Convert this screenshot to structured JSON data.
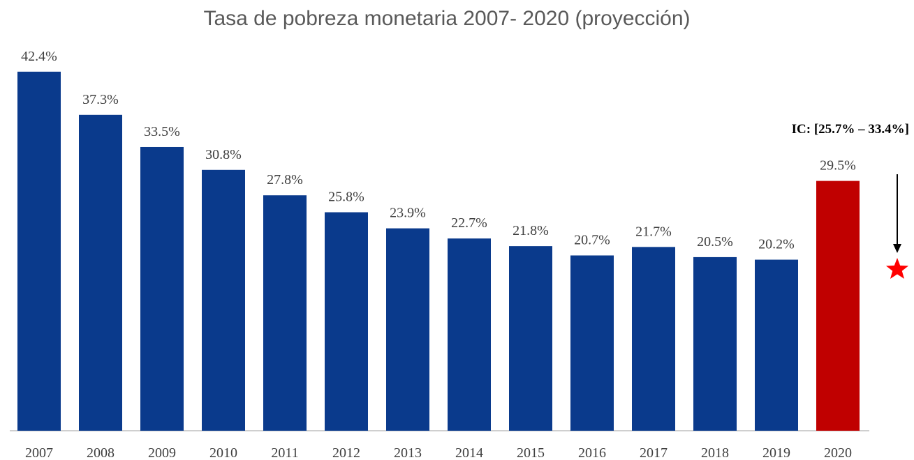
{
  "chart_data": {
    "type": "bar",
    "title": "Tasa de pobreza monetaria 2007- 2020 (proyección)",
    "categories": [
      "2007",
      "2008",
      "2009",
      "2010",
      "2011",
      "2012",
      "2013",
      "2014",
      "2015",
      "2016",
      "2017",
      "2018",
      "2019",
      "2020"
    ],
    "values": [
      42.4,
      37.3,
      33.5,
      30.8,
      27.8,
      25.8,
      23.9,
      22.7,
      21.8,
      20.7,
      21.7,
      20.5,
      20.2,
      29.5
    ],
    "value_labels": [
      "42.4%",
      "37.3%",
      "33.5%",
      "30.8%",
      "27.8%",
      "25.8%",
      "23.9%",
      "22.7%",
      "21.8%",
      "20.7%",
      "21.7%",
      "20.5%",
      "20.2%",
      "29.5%"
    ],
    "colors": [
      "#0a3a8c",
      "#0a3a8c",
      "#0a3a8c",
      "#0a3a8c",
      "#0a3a8c",
      "#0a3a8c",
      "#0a3a8c",
      "#0a3a8c",
      "#0a3a8c",
      "#0a3a8c",
      "#0a3a8c",
      "#0a3a8c",
      "#0a3a8c",
      "#c00000"
    ],
    "annotation": "IC: [25.7% – 33.4%]"
  }
}
